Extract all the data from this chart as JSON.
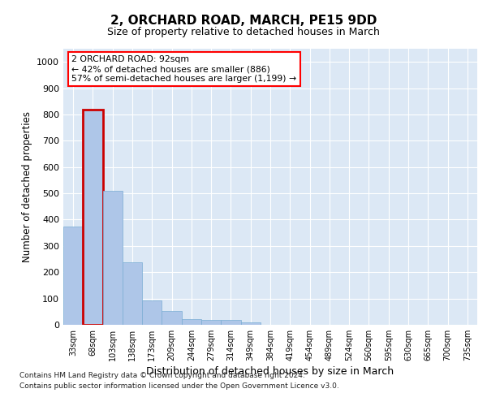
{
  "title": "2, ORCHARD ROAD, MARCH, PE15 9DD",
  "subtitle": "Size of property relative to detached houses in March",
  "xlabel": "Distribution of detached houses by size in March",
  "ylabel": "Number of detached properties",
  "bar_color": "#aec6e8",
  "bar_edge_color": "#7aadd4",
  "highlight_bar_index": 1,
  "highlight_edge_color": "#cc0000",
  "categories": [
    "33sqm",
    "68sqm",
    "103sqm",
    "138sqm",
    "173sqm",
    "209sqm",
    "244sqm",
    "279sqm",
    "314sqm",
    "349sqm",
    "384sqm",
    "419sqm",
    "454sqm",
    "489sqm",
    "524sqm",
    "560sqm",
    "595sqm",
    "630sqm",
    "665sqm",
    "700sqm",
    "735sqm"
  ],
  "values": [
    375,
    818,
    510,
    237,
    92,
    53,
    22,
    20,
    17,
    10,
    0,
    0,
    0,
    0,
    0,
    0,
    0,
    0,
    0,
    0,
    0
  ],
  "ylim": [
    0,
    1050
  ],
  "yticks": [
    0,
    100,
    200,
    300,
    400,
    500,
    600,
    700,
    800,
    900,
    1000
  ],
  "annotation_line1": "2 ORCHARD ROAD: 92sqm",
  "annotation_line2": "← 42% of detached houses are smaller (886)",
  "annotation_line3": "57% of semi-detached houses are larger (1,199) →",
  "footer_line1": "Contains HM Land Registry data © Crown copyright and database right 2024.",
  "footer_line2": "Contains public sector information licensed under the Open Government Licence v3.0.",
  "plot_bg_color": "#dce8f5",
  "grid_color": "#ffffff",
  "fig_bg_color": "#ffffff"
}
